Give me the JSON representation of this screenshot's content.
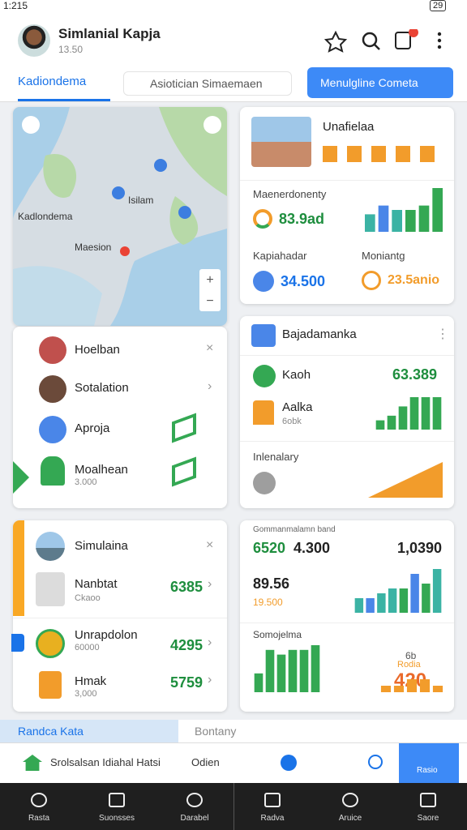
{
  "status_bar": {
    "time": "1:215",
    "battery": "29"
  },
  "header": {
    "title": "Simlanial Kapja",
    "subtitle": "13.50"
  },
  "tabs": {
    "active": "Kadiondema",
    "second": "Asiotician Simaemaen",
    "button": "Menulgline Cometa"
  },
  "map": {
    "labels": [
      "Kadlondema",
      "Isilam",
      "Maesion"
    ]
  },
  "list_1": [
    {
      "label": "Hoelban"
    },
    {
      "label": "Sotalation"
    },
    {
      "label": "Aproja"
    },
    {
      "label": "Moalhean",
      "sub": "3.000"
    }
  ],
  "card_overview": {
    "title": "Unafielaa",
    "stat_1": {
      "label": "Maenerdonenty",
      "value": "83.9ad"
    },
    "chart": {
      "values": [
        4,
        6,
        5,
        5,
        6,
        10
      ],
      "colors": [
        "#3bb3a4",
        "#4a86e8",
        "#3bb3a4",
        "#34a853",
        "#34a853",
        "#34a853"
      ]
    },
    "stat_2": {
      "label": "Kapiahadar",
      "value": "34.500"
    },
    "stat_3": {
      "label": "Moniantg",
      "value": "23.5anio"
    }
  },
  "card_balance": {
    "title": "Bajadamanka",
    "row_1": {
      "label": "Kaoh",
      "value": "63.389"
    },
    "row_2": {
      "label": "Aalka",
      "sub": "6obk"
    },
    "chart": {
      "values": [
        2,
        3,
        5,
        7,
        7,
        7
      ],
      "colors": [
        "#34a853",
        "#34a853",
        "#34a853",
        "#34a853",
        "#34a853",
        "#34a853"
      ]
    },
    "row_3": {
      "label": "Inlenalary"
    }
  },
  "list_2": {
    "title": "Simulaina",
    "rows": [
      {
        "label": "Nanbtat",
        "sub": "Ckaoo",
        "value": "6385"
      },
      {
        "label": "Unrapdolon",
        "sub": "60000",
        "value": "4295"
      },
      {
        "label": "Hmak",
        "sub": "3,000",
        "value": "5759"
      }
    ]
  },
  "card_stats": {
    "caption": "Gommanmalamn band",
    "value_1": "6520",
    "value_2": "4.300",
    "value_3": "1,0390",
    "value_4": "89.56",
    "value_5": "19.500",
    "chart_top": {
      "values": [
        3,
        3,
        4,
        5,
        5,
        8,
        6,
        9
      ],
      "colors": [
        "#3bb3a4",
        "#4a86e8",
        "#3bb3a4",
        "#3bb3a4",
        "#34a853",
        "#4a86e8",
        "#34a853",
        "#3bb3a4"
      ]
    },
    "subtitle": "Somojelma",
    "chart_bottom": {
      "values": [
        4,
        9,
        8,
        9,
        9,
        10
      ],
      "colors": [
        "#34a853",
        "#34a853",
        "#34a853",
        "#34a853",
        "#34a853",
        "#34a853"
      ]
    },
    "note_1": "6b",
    "note_2": "Rodia",
    "value_6": "420",
    "chart_small": {
      "values": [
        1,
        1,
        2,
        2,
        1
      ],
      "colors": [
        "#f29c2b",
        "#f29c2b",
        "#f29c2b",
        "#f29c2b",
        "#f29c2b"
      ]
    }
  },
  "bottom_tabs": {
    "left": "Randca Kata",
    "right": "Bontany"
  },
  "search": {
    "placeholder": "Srolsalsan Idiahal Hatsi",
    "option": "Odien",
    "action": "Rasio"
  },
  "nav": [
    "Rasta",
    "Suonsses",
    "Darabel",
    "Radva",
    "Aruice",
    "Saore"
  ]
}
